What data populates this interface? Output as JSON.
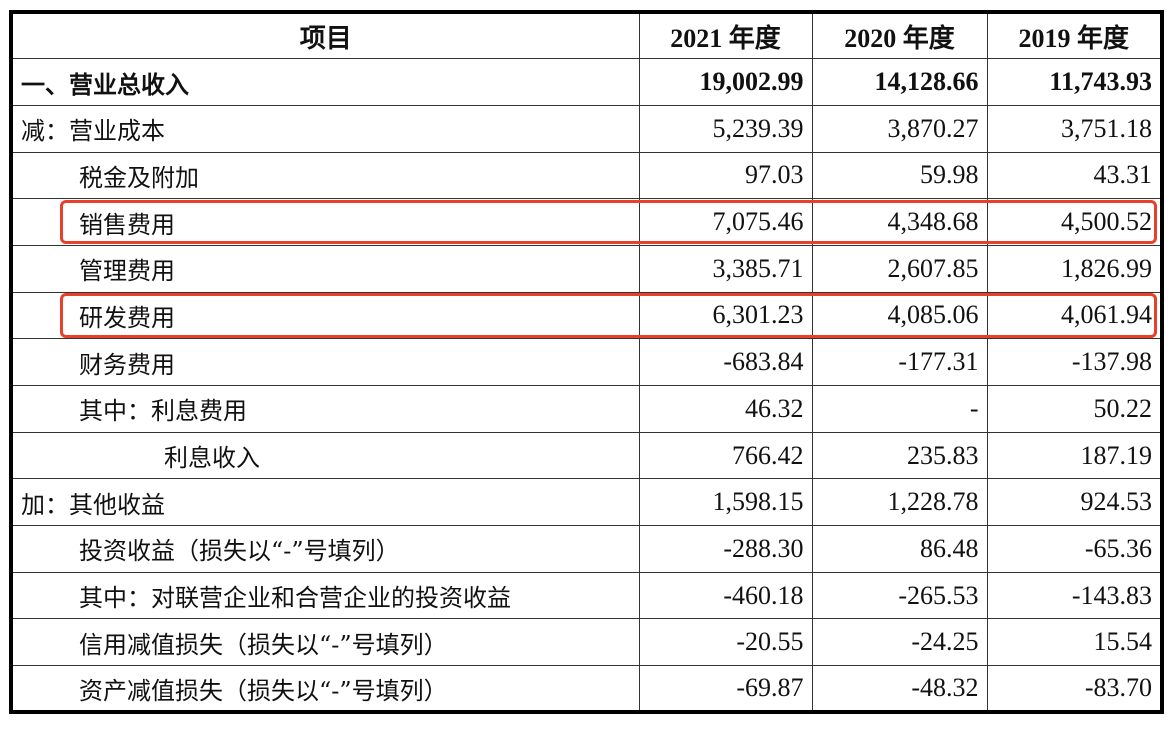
{
  "header": {
    "item": "项目",
    "y2021": "2021 年度",
    "y2020": "2020 年度",
    "y2019": "2019 年度"
  },
  "rows": [
    {
      "label": "一、营业总收入",
      "indent": 0,
      "bold": true,
      "v2021": "19,002.99",
      "v2020": "14,128.66",
      "v2019": "11,743.93"
    },
    {
      "label": "减：营业成本",
      "indent": 0,
      "v2021": "5,239.39",
      "v2020": "3,870.27",
      "v2019": "3,751.18"
    },
    {
      "label": "税金及附加",
      "indent": 1,
      "v2021": "97.03",
      "v2020": "59.98",
      "v2019": "43.31"
    },
    {
      "label": "销售费用",
      "indent": 1,
      "highlighted": true,
      "v2021": "7,075.46",
      "v2020": "4,348.68",
      "v2019": "4,500.52"
    },
    {
      "label": "管理费用",
      "indent": 1,
      "v2021": "3,385.71",
      "v2020": "2,607.85",
      "v2019": "1,826.99"
    },
    {
      "label": "研发费用",
      "indent": 1,
      "highlighted": true,
      "v2021": "6,301.23",
      "v2020": "4,085.06",
      "v2019": "4,061.94"
    },
    {
      "label": "财务费用",
      "indent": 1,
      "v2021": "-683.84",
      "v2020": "-177.31",
      "v2019": "-137.98"
    },
    {
      "label": "其中：利息费用",
      "indent": 1,
      "v2021": "46.32",
      "v2020": "-",
      "v2019": "50.22"
    },
    {
      "label": "利息收入",
      "indent": 2,
      "v2021": "766.42",
      "v2020": "235.83",
      "v2019": "187.19"
    },
    {
      "label": "加：其他收益",
      "indent": 0,
      "v2021": "1,598.15",
      "v2020": "1,228.78",
      "v2019": "924.53"
    },
    {
      "label": "投资收益（损失以“-”号填列）",
      "indent": 1,
      "v2021": "-288.30",
      "v2020": "86.48",
      "v2019": "-65.36"
    },
    {
      "label": "其中：对联营企业和合营企业的投资收益",
      "indent": 1,
      "v2021": "-460.18",
      "v2020": "-265.53",
      "v2019": "-143.83"
    },
    {
      "label": "信用减值损失（损失以“-”号填列）",
      "indent": 1,
      "v2021": "-20.55",
      "v2020": "-24.25",
      "v2019": "15.54"
    },
    {
      "label": "资产减值损失（损失以“-”号填列）",
      "indent": 1,
      "v2021": "-69.87",
      "v2020": "-48.32",
      "v2019": "-83.70"
    }
  ],
  "highlight_color": "#e8402a"
}
